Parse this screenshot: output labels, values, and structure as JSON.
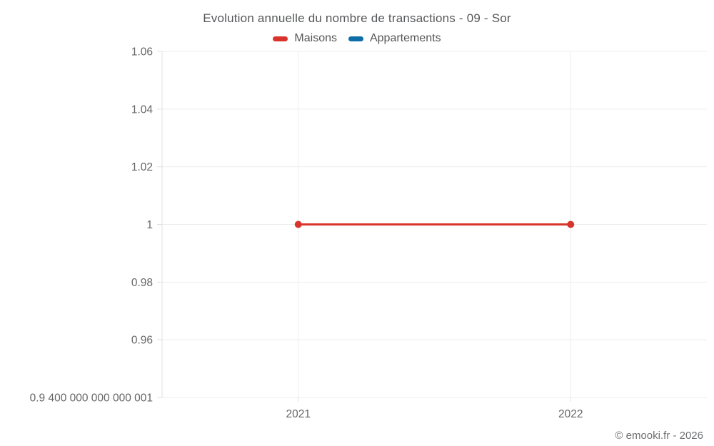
{
  "title": "Evolution annuelle du nombre de transactions - 09 - Sor",
  "copyright": "© emooki.fr - 2026",
  "legend": [
    {
      "label": "Maisons",
      "color": "#d9342b"
    },
    {
      "label": "Appartements",
      "color": "#0d6ea8"
    }
  ],
  "colors": {
    "grid": "#ededed",
    "axis": "#e0e0e0",
    "tick_text": "#666666",
    "maisons": "#d9342b",
    "appartements": "#0d6ea8"
  },
  "chart_data": {
    "type": "line",
    "title": "Evolution annuelle du nombre de transactions - 09 - Sor",
    "xlabel": "",
    "ylabel": "",
    "x": [
      2021,
      2022
    ],
    "xtick_labels": [
      "2021",
      "2022"
    ],
    "series": [
      {
        "name": "Maisons",
        "color": "#d9342b",
        "values": [
          1,
          1
        ]
      },
      {
        "name": "Appartements",
        "color": "#0d6ea8",
        "values": []
      }
    ],
    "ylim": [
      0.9400000000000001,
      1.06
    ],
    "yticks": [
      1.06,
      1.04,
      1.02,
      1,
      0.98,
      0.96,
      0.9400000000000001
    ],
    "ytick_labels": [
      "1.06",
      "1.04",
      "1.02",
      "1",
      "0.98",
      "0.96",
      "0.9 400 000 000 000 001"
    ],
    "grid": true,
    "legend_position": "top"
  }
}
